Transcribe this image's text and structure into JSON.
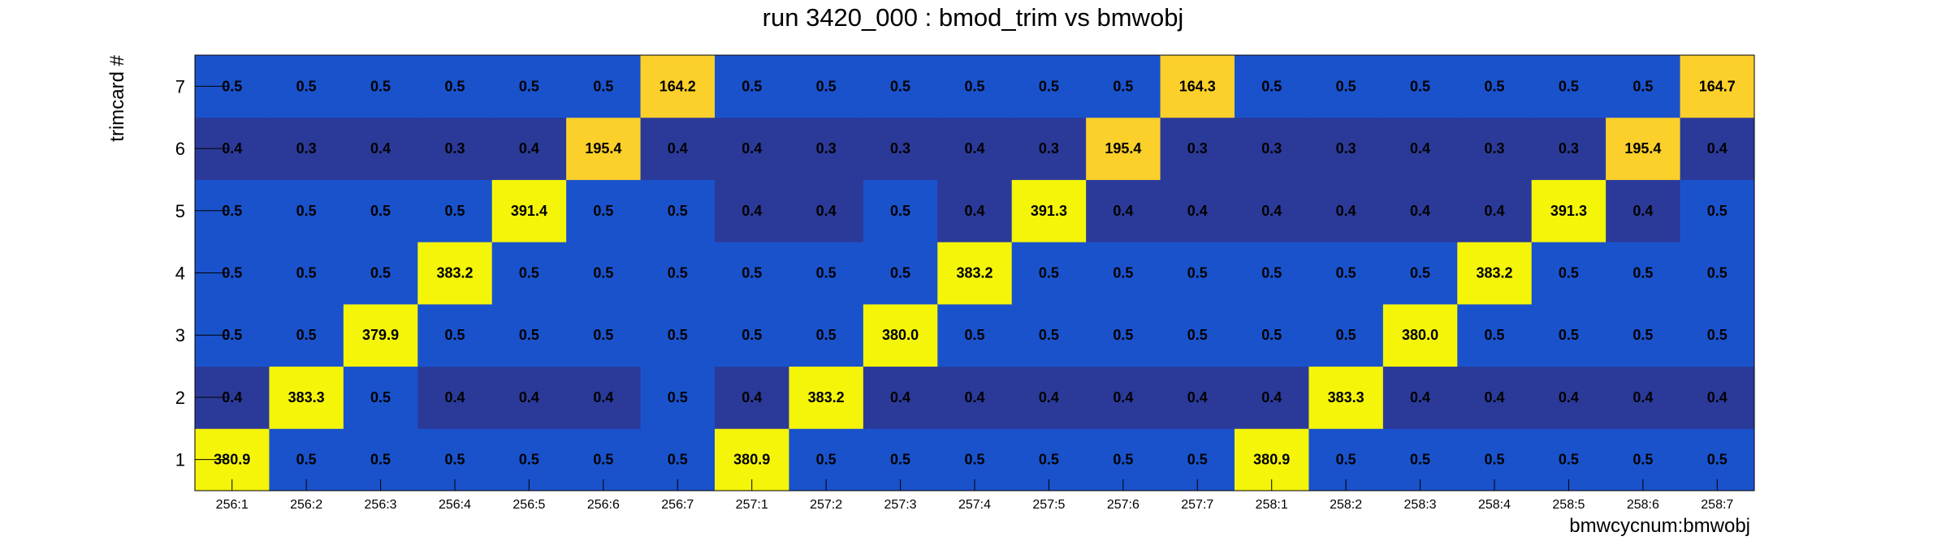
{
  "chart_data": {
    "type": "heatmap",
    "title": "run 3420_000 : bmod_trim vs bmwobj",
    "xlabel": "bmwcycnum:bmwobj",
    "ylabel": "trimcard #",
    "x_categories": [
      "256:1",
      "256:2",
      "256:3",
      "256:4",
      "256:5",
      "256:6",
      "256:7",
      "257:1",
      "257:2",
      "257:3",
      "257:4",
      "257:5",
      "257:6",
      "257:7",
      "258:1",
      "258:2",
      "258:3",
      "258:4",
      "258:5",
      "258:6",
      "258:7"
    ],
    "y_categories": [
      "1",
      "2",
      "3",
      "4",
      "5",
      "6",
      "7"
    ],
    "values": [
      [
        "380.9",
        "0.5",
        "0.5",
        "0.5",
        "0.5",
        "0.5",
        "0.5",
        "380.9",
        "0.5",
        "0.5",
        "0.5",
        "0.5",
        "0.5",
        "0.5",
        "380.9",
        "0.5",
        "0.5",
        "0.5",
        "0.5",
        "0.5",
        "0.5"
      ],
      [
        "0.4",
        "383.3",
        "0.5",
        "0.4",
        "0.4",
        "0.4",
        "0.5",
        "0.4",
        "383.2",
        "0.4",
        "0.4",
        "0.4",
        "0.4",
        "0.4",
        "0.4",
        "383.3",
        "0.4",
        "0.4",
        "0.4",
        "0.4",
        "0.4"
      ],
      [
        "0.5",
        "0.5",
        "379.9",
        "0.5",
        "0.5",
        "0.5",
        "0.5",
        "0.5",
        "0.5",
        "380.0",
        "0.5",
        "0.5",
        "0.5",
        "0.5",
        "0.5",
        "0.5",
        "380.0",
        "0.5",
        "0.5",
        "0.5",
        "0.5"
      ],
      [
        "0.5",
        "0.5",
        "0.5",
        "383.2",
        "0.5",
        "0.5",
        "0.5",
        "0.5",
        "0.5",
        "0.5",
        "383.2",
        "0.5",
        "0.5",
        "0.5",
        "0.5",
        "0.5",
        "0.5",
        "383.2",
        "0.5",
        "0.5",
        "0.5"
      ],
      [
        "0.5",
        "0.5",
        "0.5",
        "0.5",
        "391.4",
        "0.5",
        "0.5",
        "0.4",
        "0.4",
        "0.5",
        "0.4",
        "391.3",
        "0.4",
        "0.4",
        "0.4",
        "0.4",
        "0.4",
        "0.4",
        "391.3",
        "0.4",
        "0.5"
      ],
      [
        "0.4",
        "0.3",
        "0.4",
        "0.3",
        "0.4",
        "195.4",
        "0.4",
        "0.4",
        "0.3",
        "0.3",
        "0.4",
        "0.3",
        "195.4",
        "0.3",
        "0.3",
        "0.3",
        "0.4",
        "0.3",
        "0.3",
        "195.4",
        "0.4"
      ],
      [
        "0.5",
        "0.5",
        "0.5",
        "0.5",
        "0.5",
        "0.5",
        "164.2",
        "0.5",
        "0.5",
        "0.5",
        "0.5",
        "0.5",
        "0.5",
        "164.3",
        "0.5",
        "0.5",
        "0.5",
        "0.5",
        "0.5",
        "0.5",
        "164.7"
      ]
    ],
    "colors": {
      "high": "#f5f50a",
      "mid_high": "#fcd02a",
      "normal": "#1a52cc",
      "low": "#2b3a99"
    }
  }
}
